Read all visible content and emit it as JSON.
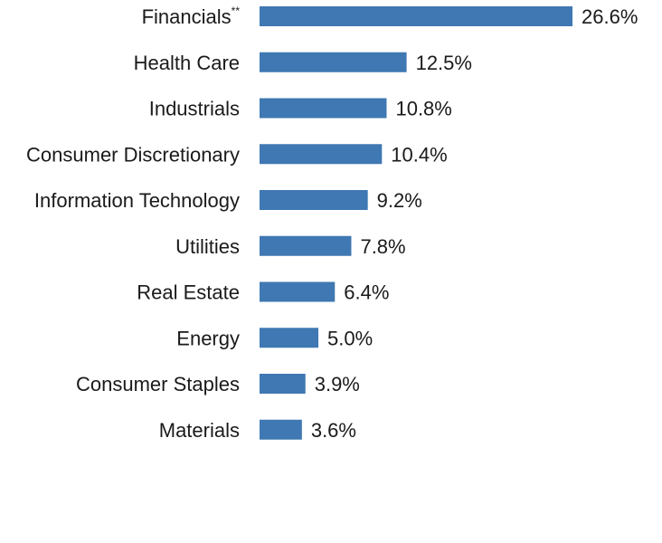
{
  "chart_data": {
    "type": "bar",
    "orientation": "horizontal",
    "categories": [
      "Financials",
      "Health Care",
      "Industrials",
      "Consumer Discretionary",
      "Information Technology",
      "Utilities",
      "Real Estate",
      "Energy",
      "Consumer Staples",
      "Materials"
    ],
    "category_footnotes": [
      "**",
      "",
      "",
      "",
      "",
      "",
      "",
      "",
      "",
      ""
    ],
    "values": [
      26.6,
      12.5,
      10.8,
      10.4,
      9.2,
      7.8,
      6.4,
      5.0,
      3.9,
      3.6
    ],
    "value_labels": [
      "26.6%",
      "12.5%",
      "10.8%",
      "10.4%",
      "9.2%",
      "7.8%",
      "6.4%",
      "5.0%",
      "3.9%",
      "3.6%"
    ],
    "bar_color": "#3f78b2",
    "xlim": [
      0,
      26.6
    ],
    "grid": false,
    "legend": "none"
  }
}
